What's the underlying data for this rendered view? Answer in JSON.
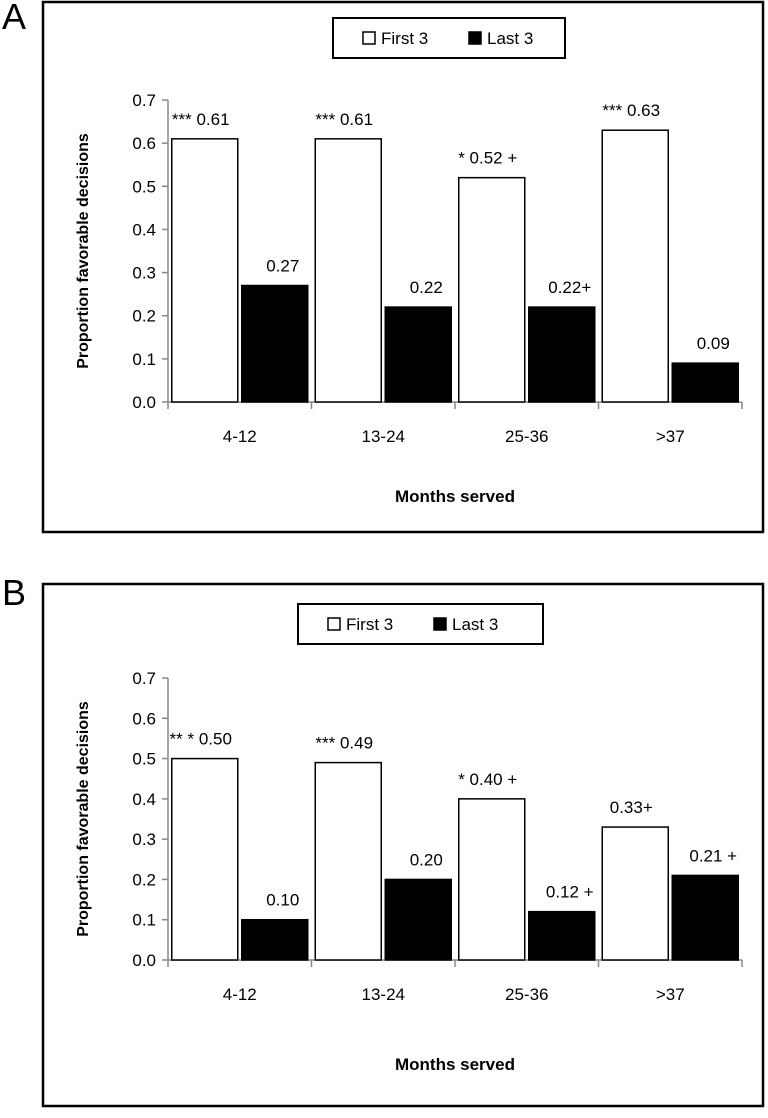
{
  "chart_data": [
    {
      "panel": "A",
      "type": "bar",
      "categories": [
        "4-12",
        "13-24",
        "25-36",
        ">37"
      ],
      "series": [
        {
          "name": "First 3",
          "values": [
            0.61,
            0.61,
            0.52,
            0.63
          ],
          "color": "#ffffff",
          "labels": [
            "*** 0.61",
            "*** 0.61",
            "* 0.52 +",
            "*** 0.63"
          ]
        },
        {
          "name": "Last 3",
          "values": [
            0.27,
            0.22,
            0.22,
            0.09
          ],
          "color": "#000000",
          "labels": [
            "0.27",
            "0.22",
            "0.22+",
            "0.09"
          ]
        }
      ],
      "xlabel": "Months served",
      "ylabel": "Proportion favorable decisions",
      "ylim": [
        0,
        0.7
      ],
      "yticks": [
        "0.0",
        "0.1",
        "0.2",
        "0.3",
        "0.4",
        "0.5",
        "0.6",
        "0.7"
      ],
      "legend": "top-center",
      "grid": false
    },
    {
      "panel": "B",
      "type": "bar",
      "categories": [
        "4-12",
        "13-24",
        "25-36",
        ">37"
      ],
      "series": [
        {
          "name": "First 3",
          "values": [
            0.5,
            0.49,
            0.4,
            0.33
          ],
          "color": "#ffffff",
          "labels": [
            "** * 0.50",
            "*** 0.49",
            "* 0.40 +",
            "0.33+"
          ]
        },
        {
          "name": "Last 3",
          "values": [
            0.1,
            0.2,
            0.12,
            0.21
          ],
          "color": "#000000",
          "labels": [
            "0.10",
            "0.20",
            "0.12 +",
            "0.21 +"
          ]
        }
      ],
      "xlabel": "Months served",
      "ylabel": "Proportion favorable decisions",
      "ylim": [
        0,
        0.7
      ],
      "yticks": [
        "0.0",
        "0.1",
        "0.2",
        "0.3",
        "0.4",
        "0.5",
        "0.6",
        "0.7"
      ],
      "legend": "top-center",
      "grid": false
    }
  ]
}
